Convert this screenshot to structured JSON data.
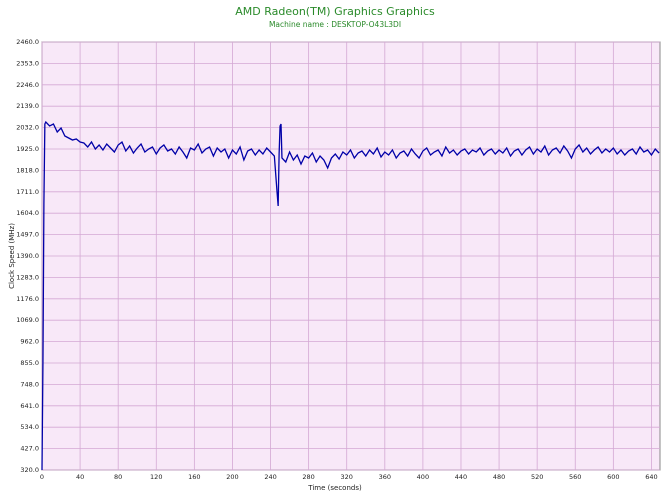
{
  "chart_data": {
    "type": "line",
    "title": "AMD Radeon(TM) Graphics Graphics",
    "subtitle": "Machine name : DESKTOP-O43L3DI",
    "x_label": "Time (seconds)",
    "y_label": "Clock Speed (MHz)",
    "grid": true,
    "xlim": [
      0,
      649
    ],
    "ylim": [
      320,
      2460
    ],
    "xticks": [
      0,
      40,
      80,
      120,
      160,
      200,
      240,
      280,
      320,
      360,
      400,
      440,
      480,
      520,
      560,
      600,
      640
    ],
    "yticks": [
      {
        "value": 320,
        "label": "320.0"
      },
      {
        "value": 427,
        "label": "427.0"
      },
      {
        "value": 534,
        "label": "534.0"
      },
      {
        "value": 641,
        "label": "641.0"
      },
      {
        "value": 748,
        "label": "748.0"
      },
      {
        "value": 855,
        "label": "855.0"
      },
      {
        "value": 962,
        "label": "962.0"
      },
      {
        "value": 1069,
        "label": "1069.0"
      },
      {
        "value": 1176,
        "label": "1176.0"
      },
      {
        "value": 1283,
        "label": "1283.0"
      },
      {
        "value": 1390,
        "label": "1390.0"
      },
      {
        "value": 1497,
        "label": "1497.0"
      },
      {
        "value": 1604,
        "label": "1604.0"
      },
      {
        "value": 1711,
        "label": "1711.0"
      },
      {
        "value": 1818,
        "label": "1818.0"
      },
      {
        "value": 1925,
        "label": "1925.0"
      },
      {
        "value": 2032,
        "label": "2032.0"
      },
      {
        "value": 2139,
        "label": "2139.0"
      },
      {
        "value": 2246,
        "label": "2246.0"
      },
      {
        "value": 2353,
        "label": "2353.0"
      },
      {
        "value": 2460,
        "label": "2460.0"
      }
    ],
    "x": [
      0,
      1,
      2,
      3,
      4,
      8,
      12,
      16,
      20,
      24,
      28,
      32,
      36,
      40,
      44,
      48,
      52,
      56,
      60,
      64,
      68,
      72,
      76,
      80,
      84,
      88,
      92,
      96,
      100,
      104,
      108,
      112,
      116,
      120,
      124,
      128,
      132,
      136,
      140,
      144,
      148,
      152,
      156,
      160,
      164,
      168,
      172,
      176,
      180,
      184,
      188,
      192,
      196,
      200,
      204,
      208,
      212,
      216,
      220,
      224,
      228,
      232,
      236,
      240,
      244,
      247,
      248,
      249,
      250,
      251,
      252,
      256,
      260,
      264,
      268,
      272,
      276,
      280,
      284,
      288,
      292,
      296,
      300,
      304,
      308,
      312,
      316,
      320,
      324,
      328,
      332,
      336,
      340,
      344,
      348,
      352,
      356,
      360,
      364,
      368,
      372,
      376,
      380,
      384,
      388,
      392,
      396,
      400,
      404,
      408,
      412,
      416,
      420,
      424,
      428,
      432,
      436,
      440,
      444,
      448,
      452,
      456,
      460,
      464,
      468,
      472,
      476,
      480,
      484,
      488,
      492,
      496,
      500,
      504,
      508,
      512,
      516,
      520,
      524,
      528,
      532,
      536,
      540,
      544,
      548,
      552,
      556,
      560,
      564,
      568,
      572,
      576,
      580,
      584,
      588,
      592,
      596,
      600,
      604,
      608,
      612,
      616,
      620,
      624,
      628,
      632,
      636,
      640,
      644,
      648
    ],
    "series": [
      {
        "name": "Clock Speed",
        "color": "#0000a8",
        "values": [
          320,
          860,
          1650,
          2050,
          2060,
          2040,
          2050,
          2010,
          2030,
          1990,
          1980,
          1970,
          1975,
          1960,
          1955,
          1935,
          1960,
          1925,
          1945,
          1920,
          1950,
          1930,
          1910,
          1945,
          1960,
          1915,
          1940,
          1905,
          1930,
          1950,
          1910,
          1925,
          1935,
          1900,
          1930,
          1945,
          1915,
          1925,
          1900,
          1935,
          1910,
          1880,
          1930,
          1920,
          1950,
          1905,
          1925,
          1935,
          1890,
          1930,
          1910,
          1925,
          1880,
          1920,
          1900,
          1935,
          1870,
          1915,
          1925,
          1895,
          1920,
          1900,
          1930,
          1910,
          1890,
          1700,
          1640,
          1900,
          2040,
          2050,
          1880,
          1860,
          1910,
          1870,
          1895,
          1850,
          1890,
          1880,
          1905,
          1860,
          1890,
          1870,
          1830,
          1880,
          1900,
          1875,
          1910,
          1895,
          1920,
          1880,
          1905,
          1915,
          1890,
          1920,
          1900,
          1930,
          1885,
          1910,
          1895,
          1920,
          1880,
          1905,
          1915,
          1890,
          1925,
          1900,
          1880,
          1915,
          1930,
          1895,
          1910,
          1920,
          1890,
          1935,
          1905,
          1920,
          1895,
          1915,
          1925,
          1900,
          1920,
          1910,
          1930,
          1895,
          1915,
          1925,
          1900,
          1920,
          1905,
          1930,
          1890,
          1915,
          1925,
          1895,
          1920,
          1935,
          1900,
          1925,
          1910,
          1940,
          1895,
          1920,
          1930,
          1905,
          1940,
          1915,
          1880,
          1925,
          1945,
          1910,
          1930,
          1900,
          1920,
          1935,
          1905,
          1925,
          1910,
          1930,
          1900,
          1920,
          1895,
          1915,
          1925,
          1900,
          1935,
          1910,
          1920,
          1895,
          1925,
          1905
        ]
      }
    ]
  }
}
